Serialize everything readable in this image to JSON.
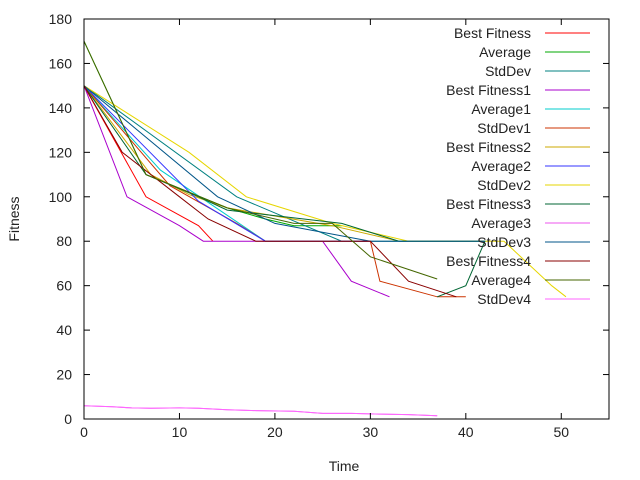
{
  "chart_data": {
    "type": "line",
    "xlabel": "Time",
    "ylabel": "Fitness",
    "xlim": [
      0,
      55
    ],
    "ylim": [
      0,
      180
    ],
    "xticks": [
      0,
      10,
      20,
      30,
      40,
      50
    ],
    "yticks": [
      0,
      20,
      40,
      60,
      80,
      100,
      120,
      140,
      160,
      180
    ],
    "legend_position": "top-right",
    "grid": false,
    "series": [
      {
        "name": "Best Fitness",
        "color": "#ff0000",
        "x": [
          0,
          6.5,
          12,
          13.5
        ],
        "y": [
          150,
          100,
          87,
          80
        ]
      },
      {
        "name": "Average",
        "color": "#00aa00",
        "x": [
          0,
          6.5,
          15,
          19,
          22,
          27
        ],
        "y": [
          170,
          110,
          95,
          90,
          87,
          87
        ]
      },
      {
        "name": "StdDev",
        "color": "#008080",
        "x": [
          0,
          16,
          27,
          30,
          42
        ],
        "y": [
          150,
          100,
          80,
          80,
          80
        ]
      },
      {
        "name": "Best Fitness1",
        "color": "#aa00cc",
        "x": [
          0,
          4.5,
          10,
          12.5,
          25,
          28,
          32
        ],
        "y": [
          150,
          100,
          87,
          80,
          80,
          62,
          55
        ]
      },
      {
        "name": "Average1",
        "color": "#00cccc",
        "x": [
          0,
          8,
          19,
          30
        ],
        "y": [
          150,
          112,
          80,
          80
        ]
      },
      {
        "name": "StdDev1",
        "color": "#cc3300",
        "x": [
          0,
          9,
          16,
          19,
          30,
          31,
          37,
          40
        ],
        "y": [
          150,
          105,
          88,
          80,
          80,
          62,
          55,
          55
        ]
      },
      {
        "name": "Best Fitness2",
        "color": "#ccaa00",
        "x": [
          0,
          7,
          11,
          15,
          26,
          33
        ],
        "y": [
          150,
          110,
          101,
          95,
          87,
          80
        ]
      },
      {
        "name": "Average2",
        "color": "#3333ff",
        "x": [
          0,
          12,
          19,
          30
        ],
        "y": [
          150,
          98,
          80,
          80
        ]
      },
      {
        "name": "StdDev2",
        "color": "#e6d600",
        "x": [
          0,
          11,
          17,
          26,
          34,
          44,
          49,
          50.5
        ],
        "y": [
          150,
          120,
          100,
          88,
          80,
          80,
          60,
          55
        ]
      },
      {
        "name": "Best Fitness3",
        "color": "#006633",
        "x": [
          0,
          6.5,
          12,
          15,
          27,
          33,
          42,
          40,
          37
        ],
        "y": [
          150,
          110,
          100,
          94,
          88,
          80,
          80,
          60,
          55
        ]
      },
      {
        "name": "Average3",
        "color": "#ee55ee",
        "x": [
          0,
          3,
          5,
          7,
          10,
          12,
          15,
          18,
          22,
          25,
          28,
          31,
          34,
          37
        ],
        "y": [
          6,
          5.5,
          5,
          4.8,
          5,
          4.8,
          4.2,
          3.8,
          3.5,
          2.5,
          2.5,
          2.2,
          2,
          1.5
        ]
      },
      {
        "name": "StdDev3",
        "color": "#005588",
        "x": [
          0,
          14,
          20,
          30,
          42
        ],
        "y": [
          150,
          100,
          88,
          80,
          80
        ]
      },
      {
        "name": "Best Fitness4",
        "color": "#880000",
        "x": [
          0,
          4,
          10,
          13,
          18,
          30,
          34,
          39
        ],
        "y": [
          150,
          120,
          100,
          90,
          80,
          80,
          62,
          55
        ]
      },
      {
        "name": "Average4",
        "color": "#446600",
        "x": [
          0,
          6.5,
          15,
          22,
          26,
          30,
          37
        ],
        "y": [
          170,
          110,
          95,
          88,
          88,
          73,
          63
        ]
      },
      {
        "name": "StdDev4",
        "color": "#ff66ff",
        "x": [
          0,
          3,
          5,
          7,
          10,
          12,
          15,
          18,
          22,
          25,
          28,
          31,
          34,
          37
        ],
        "y": [
          6,
          5.5,
          5,
          4.8,
          5,
          4.8,
          4.2,
          3.8,
          3.5,
          2.5,
          2.5,
          2.2,
          2,
          1.5
        ]
      }
    ]
  }
}
